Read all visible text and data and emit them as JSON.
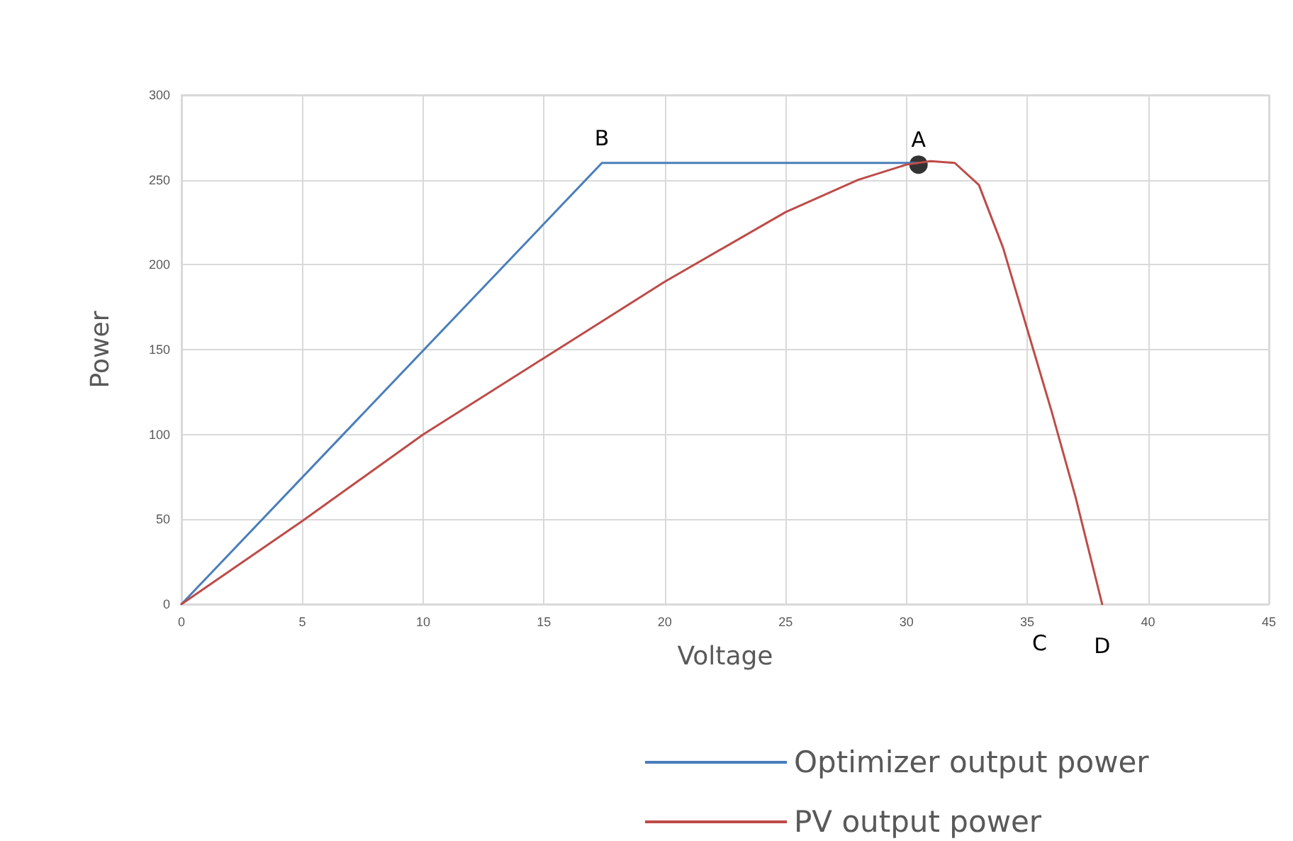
{
  "chart_data": {
    "type": "line",
    "xlabel": "Voltage",
    "ylabel": "Power",
    "xlim": [
      0,
      45
    ],
    "xticks": [
      0,
      5,
      10,
      15,
      20,
      25,
      30,
      35,
      40,
      45
    ],
    "ylim": [
      0,
      300
    ],
    "yticks": [
      0,
      50,
      100,
      150,
      200,
      250,
      300
    ],
    "grid": true,
    "legend": "bottom",
    "marker": "none",
    "line_style": "solid",
    "series": [
      {
        "name": "Optimizer output power",
        "color": "#4a7ebb",
        "x": [
          0,
          17.4,
          30.5
        ],
        "values": [
          0,
          260,
          260
        ]
      },
      {
        "name": "PV output power",
        "color": "#be4b48",
        "x": [
          0,
          5,
          10,
          15,
          20,
          25,
          28,
          30,
          31,
          32,
          33,
          34,
          35,
          36,
          37,
          38.1
        ],
        "values": [
          0,
          49,
          100,
          145,
          190,
          231,
          250,
          259,
          261,
          260,
          247,
          210,
          162,
          114,
          63,
          0
        ]
      },
      {
        "type": "scatter",
        "marker": "circle",
        "color": "#000000",
        "x": [
          30.5
        ],
        "values": [
          259
        ]
      }
    ],
    "annotations": [
      {
        "text": "A",
        "x": 30.5,
        "y": 259
      },
      {
        "text": "B",
        "x": 17.4,
        "y": 260
      },
      "C",
      {
        "text": "D",
        "x": 38.1,
        "y": 0
      }
    ]
  }
}
